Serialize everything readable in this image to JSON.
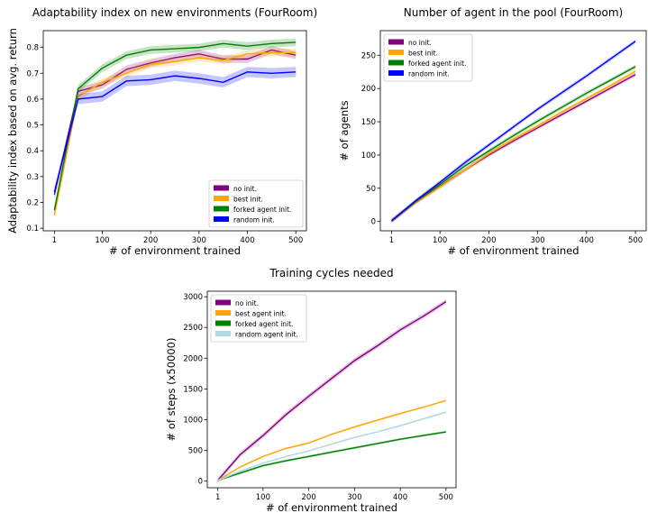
{
  "chart_data": [
    {
      "type": "line",
      "title": "Adaptability index on new environments (FourRoom)",
      "xlabel": "# of environment trained",
      "ylabel": "Adaptability index based on avg. return",
      "xlim": [
        -22,
        522
      ],
      "ylim": [
        0.09,
        0.865
      ],
      "xticks": [
        1,
        100,
        200,
        300,
        400,
        500
      ],
      "xtick_labels": [
        "1",
        "100",
        "200",
        "300",
        "400",
        "500"
      ],
      "yticks": [
        0.1,
        0.2,
        0.3,
        0.4,
        0.5,
        0.6,
        0.7,
        0.8
      ],
      "ytick_labels": [
        "0.1",
        "0.2",
        "0.3",
        "0.4",
        "0.5",
        "0.6",
        "0.7",
        "0.8"
      ],
      "legend_position": "lower-right",
      "grid": false,
      "x": [
        1,
        50,
        100,
        150,
        200,
        250,
        300,
        350,
        400,
        450,
        500
      ],
      "series": [
        {
          "name": "no init.",
          "color": "#800080",
          "values": [
            0.23,
            0.63,
            0.655,
            0.715,
            0.74,
            0.76,
            0.775,
            0.755,
            0.755,
            0.79,
            0.77
          ],
          "band": 0.015
        },
        {
          "name": "best init.",
          "color": "#FFA500",
          "values": [
            0.15,
            0.61,
            0.665,
            0.7,
            0.735,
            0.745,
            0.76,
            0.75,
            0.775,
            0.78,
            0.78
          ],
          "band": 0.015
        },
        {
          "name": "forked agent init.",
          "color": "#008000",
          "values": [
            0.17,
            0.64,
            0.72,
            0.77,
            0.79,
            0.795,
            0.8,
            0.815,
            0.805,
            0.815,
            0.82
          ],
          "band": 0.015
        },
        {
          "name": "random init.",
          "color": "#0000FF",
          "values": [
            0.24,
            0.6,
            0.61,
            0.67,
            0.675,
            0.69,
            0.68,
            0.665,
            0.705,
            0.7,
            0.705
          ],
          "band": 0.02
        }
      ]
    },
    {
      "type": "line",
      "title": "Number of agent in the pool (FourRoom)",
      "xlabel": "# of environment trained",
      "ylabel": "# of agents",
      "xlim": [
        -22,
        522
      ],
      "ylim": [
        -14,
        287
      ],
      "xticks": [
        1,
        100,
        200,
        300,
        400,
        500
      ],
      "xtick_labels": [
        "1",
        "100",
        "200",
        "300",
        "400",
        "500"
      ],
      "yticks": [
        0,
        50,
        100,
        150,
        200,
        250
      ],
      "ytick_labels": [
        "0",
        "50",
        "100",
        "150",
        "200",
        "250"
      ],
      "legend_position": "upper-left",
      "grid": false,
      "x": [
        1,
        50,
        100,
        150,
        200,
        250,
        300,
        350,
        400,
        450,
        500
      ],
      "series": [
        {
          "name": "no init.",
          "color": "#800080",
          "values": [
            1,
            29,
            53,
            77,
            100,
            121,
            141,
            161,
            181,
            201,
            221
          ],
          "band": 3
        },
        {
          "name": "best init.",
          "color": "#FFA500",
          "values": [
            1,
            28,
            52,
            77,
            102,
            124,
            144,
            165,
            185,
            205,
            226
          ],
          "band": 3
        },
        {
          "name": "forked agent init.",
          "color": "#008000",
          "values": [
            1,
            30,
            56,
            83,
            106,
            129,
            151,
            172,
            193,
            213,
            233
          ],
          "band": 3
        },
        {
          "name": "random init.",
          "color": "#0000FF",
          "values": [
            1,
            31,
            59,
            88,
            115,
            142,
            169,
            194,
            219,
            245,
            271
          ],
          "band": 3
        }
      ]
    },
    {
      "type": "line",
      "title": "Training cycles needed",
      "xlabel": "# of environment trained",
      "ylabel": "# of steps (x50000)",
      "xlim": [
        -22,
        522
      ],
      "ylim": [
        -110,
        3090
      ],
      "xticks": [
        1,
        100,
        200,
        300,
        400,
        500
      ],
      "xtick_labels": [
        "1",
        "100",
        "200",
        "300",
        "400",
        "500"
      ],
      "yticks": [
        0,
        500,
        1000,
        1500,
        2000,
        2500,
        3000
      ],
      "ytick_labels": [
        "0",
        "500",
        "1000",
        "1500",
        "2000",
        "2500",
        "3000"
      ],
      "legend_position": "upper-left",
      "grid": false,
      "x": [
        1,
        50,
        100,
        150,
        200,
        250,
        300,
        350,
        400,
        450,
        500
      ],
      "series": [
        {
          "name": "no init.",
          "color": "#800080",
          "values": [
            10,
            430,
            740,
            1080,
            1380,
            1670,
            1960,
            2200,
            2460,
            2680,
            2920
          ],
          "band": 40
        },
        {
          "name": "best agent init.",
          "color": "#FFA500",
          "values": [
            10,
            230,
            400,
            530,
            620,
            760,
            880,
            990,
            1100,
            1200,
            1310
          ],
          "band": 15
        },
        {
          "name": "forked agent init.",
          "color": "#008000",
          "values": [
            10,
            130,
            250,
            330,
            400,
            470,
            540,
            610,
            680,
            740,
            800
          ],
          "band": 20
        },
        {
          "name": "random agent init.",
          "color": "#ADD8E6",
          "values": [
            10,
            160,
            290,
            400,
            490,
            600,
            710,
            800,
            900,
            1010,
            1120
          ],
          "band": 15
        }
      ]
    }
  ]
}
